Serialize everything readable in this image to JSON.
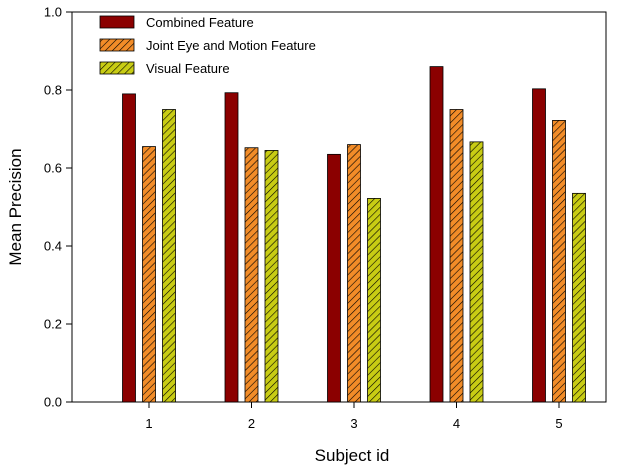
{
  "chart_data": {
    "type": "bar",
    "title": "",
    "xlabel": "Subject id",
    "ylabel": "Mean Precision",
    "categories": [
      "1",
      "2",
      "3",
      "4",
      "5"
    ],
    "ylim": [
      0,
      1.0
    ],
    "yticks": [
      "0.0",
      "0.2",
      "0.4",
      "0.6",
      "0.8",
      "1.0"
    ],
    "grid": false,
    "legend_position": "top-left",
    "series": [
      {
        "name": "Combined Feature",
        "values": [
          0.79,
          0.793,
          0.635,
          0.86,
          0.803
        ],
        "color": "#8b0000",
        "pattern": "solid"
      },
      {
        "name": "Joint Eye and Motion Feature",
        "values": [
          0.655,
          0.652,
          0.66,
          0.75,
          0.722
        ],
        "color": "#f28c28",
        "pattern": "hatch"
      },
      {
        "name": "Visual Feature",
        "values": [
          0.75,
          0.645,
          0.522,
          0.667,
          0.535
        ],
        "color": "#c8cc14",
        "pattern": "hatch"
      }
    ]
  }
}
